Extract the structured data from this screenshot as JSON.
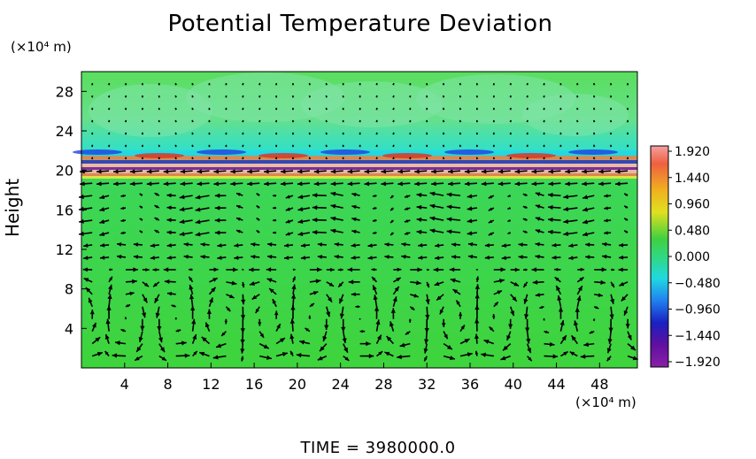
{
  "chart_data": {
    "type": "heatmap",
    "title": "Potential Temperature Deviation",
    "ylabel": "Height",
    "y_unit": "(×10⁴ m)",
    "x_unit": "(×10⁴ m)",
    "x_ticks": [
      4,
      8,
      12,
      16,
      20,
      24,
      28,
      32,
      36,
      40,
      44,
      48
    ],
    "y_ticks": [
      4,
      8,
      12,
      16,
      20,
      24,
      28
    ],
    "xlim": [
      0,
      51.5
    ],
    "ylim": [
      0,
      30
    ],
    "colorbar": {
      "ticks": [
        "1.920",
        "1.440",
        "0.960",
        "0.480",
        "0.000",
        "−0.480",
        "−0.960",
        "−1.440",
        "−1.920"
      ],
      "range": [
        -1.92,
        1.92
      ]
    },
    "time_label": "TIME = 3980000.0",
    "colors": {
      "background_field": "#3fd84a",
      "upper_field": "#6fe07a",
      "warm_band": "#f07c50",
      "hot_band": "#f4b8b0",
      "cool_band": "#1a2ec8",
      "cold_band": "#8a10a0",
      "cyan_band": "#20d8e8"
    }
  }
}
